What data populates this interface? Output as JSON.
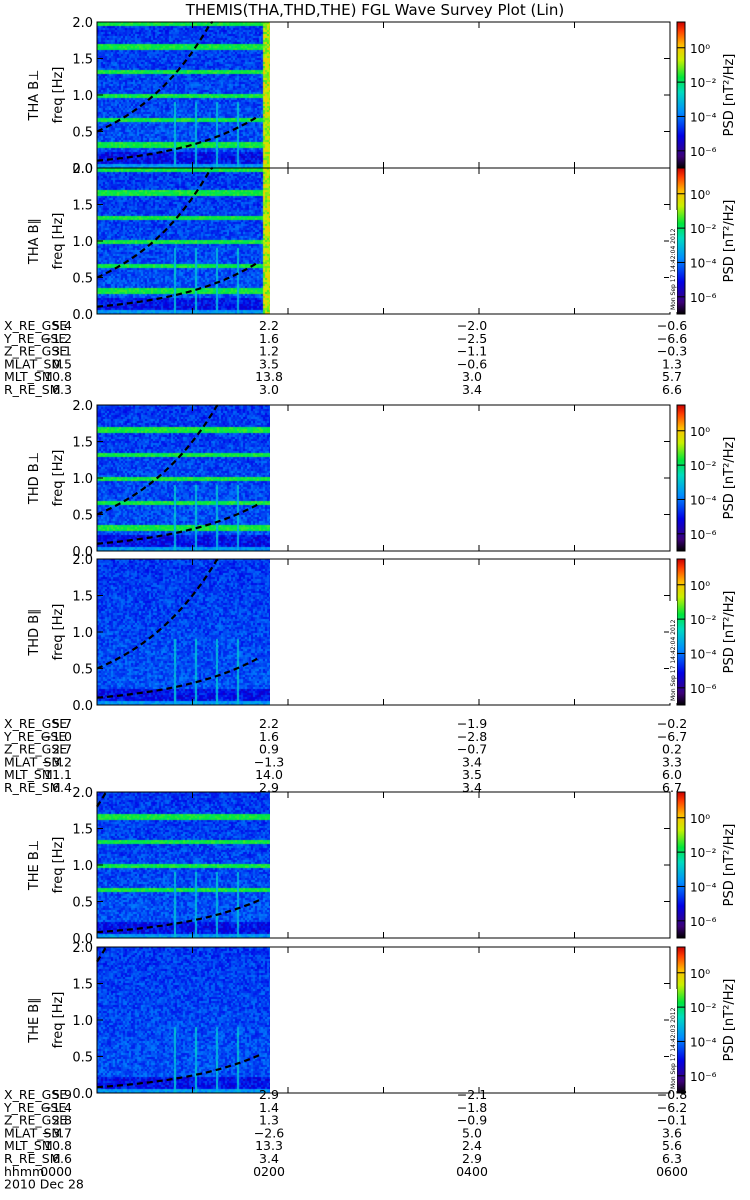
{
  "title": "THEMIS(THA,THD,THE) FGL Wave Survey Plot (Lin)",
  "colorbar": {
    "label": "PSD [nT²/Hz]",
    "ticks": [
      "10⁰",
      "10⁻²",
      "10⁻⁴",
      "10⁻⁶"
    ],
    "tick_exponents": [
      0,
      -2,
      -4,
      -6
    ],
    "range_exp": [
      -7,
      1.5
    ]
  },
  "chart_data": [
    {
      "type": "heatmap",
      "probe": "THA",
      "component": "perp",
      "ylabel_probe": "THA B⊥",
      "ylabel_axis": "freq [Hz]",
      "ylim": [
        0,
        2.0
      ],
      "yticks": [
        "0.0",
        "0.5",
        "1.0",
        "1.5",
        "2.0"
      ],
      "xlim_hours": [
        0,
        6
      ],
      "data_end_hours": 1.7,
      "fce_lines_coeff": [
        0.5,
        0.1
      ],
      "growth": 1.16,
      "lines": "black dashed",
      "harmonic_bands_hz": [
        0.33,
        0.67,
        1.0,
        1.33,
        1.67,
        2.0
      ],
      "edge_burst": true
    },
    {
      "type": "heatmap",
      "probe": "THA",
      "component": "par",
      "ylabel_probe": "THA B∥",
      "ylabel_axis": "freq [Hz]",
      "ylim": [
        0,
        2.0
      ],
      "yticks": [
        "0.0",
        "0.5",
        "1.0",
        "1.5",
        "2.0"
      ],
      "xlim_hours": [
        0,
        6
      ],
      "data_end_hours": 1.7,
      "fce_lines_coeff": [
        0.5,
        0.1
      ],
      "growth": 1.16,
      "lines": "black dashed",
      "harmonic_bands_hz": [
        0.33,
        0.67,
        1.0,
        1.33,
        1.67,
        2.0
      ],
      "edge_burst": true,
      "stamp": "Mon Sep 17 14:42:04 2012"
    },
    {
      "type": "heatmap",
      "probe": "THD",
      "component": "perp",
      "ylabel_probe": "THD B⊥",
      "ylabel_axis": "freq [Hz]",
      "ylim": [
        0,
        2.0
      ],
      "yticks": [
        "0.0",
        "0.5",
        "1.0",
        "1.5",
        "2.0"
      ],
      "xlim_hours": [
        0,
        6
      ],
      "data_end_hours": 1.7,
      "fce_lines_coeff": [
        0.5,
        0.1
      ],
      "growth": 1.1,
      "lines": "black dashed",
      "harmonic_bands_hz": [
        0.33,
        0.67,
        1.0,
        1.33,
        1.67
      ],
      "edge_burst": false
    },
    {
      "type": "heatmap",
      "probe": "THD",
      "component": "par",
      "ylabel_probe": "THD B∥",
      "ylabel_axis": "freq [Hz]",
      "ylim": [
        0,
        2.0
      ],
      "yticks": [
        "0.0",
        "0.5",
        "1.0",
        "1.5",
        "2.0"
      ],
      "xlim_hours": [
        0,
        6
      ],
      "data_end_hours": 1.7,
      "fce_lines_coeff": [
        0.5,
        0.1
      ],
      "growth": 1.1,
      "lines": "black dashed",
      "harmonic_bands_hz": [],
      "edge_burst": false,
      "stamp": "Mon Sep 17 14:42:04 2012"
    },
    {
      "type": "heatmap",
      "probe": "THE",
      "component": "perp",
      "ylabel_probe": "THE B⊥",
      "ylabel_axis": "freq [Hz]",
      "ylim": [
        0,
        2.0
      ],
      "yticks": [
        "0.0",
        "0.5",
        "1.0",
        "1.5",
        "2.0"
      ],
      "xlim_hours": [
        0,
        6
      ],
      "data_end_hours": 1.7,
      "fce_lines_coeff": [
        1.8,
        0.08
      ],
      "growth": 1.1,
      "lines": "black dashed",
      "harmonic_bands_hz": [
        0.67,
        1.0,
        1.33,
        1.67
      ],
      "edge_burst": false
    },
    {
      "type": "heatmap",
      "probe": "THE",
      "component": "par",
      "ylabel_probe": "THE B∥",
      "ylabel_axis": "freq [Hz]",
      "ylim": [
        0,
        2.0
      ],
      "yticks": [
        "0.0",
        "0.5",
        "1.0",
        "1.5",
        "2.0"
      ],
      "xlim_hours": [
        0,
        6
      ],
      "data_end_hours": 1.7,
      "fce_lines_coeff": [
        1.8,
        0.08
      ],
      "growth": 1.1,
      "lines": "black dashed",
      "harmonic_bands_hz": [],
      "edge_burst": false,
      "stamp": "Mon Sep 17 14:42:03 2012"
    }
  ],
  "ephemeris": [
    {
      "probe": "THA",
      "rows": [
        {
          "label": "X_RE_GSE",
          "values": [
            "5.4",
            "2.2",
            "−2.0",
            "−0.6"
          ]
        },
        {
          "label": "Y_RE_GSE",
          "values": [
            "−1.2",
            "1.6",
            "−2.5",
            "−6.6"
          ]
        },
        {
          "label": "Z_RE_GSE",
          "values": [
            "3.1",
            "1.2",
            "−1.1",
            "−0.3"
          ]
        },
        {
          "label": "MLAT_SM",
          "values": [
            "0.5",
            "3.5",
            "−0.6",
            "1.3"
          ]
        },
        {
          "label": "MLT_SM",
          "values": [
            "10.8",
            "13.8",
            "3.0",
            "5.7"
          ]
        },
        {
          "label": "R_RE_SM",
          "values": [
            "6.3",
            "3.0",
            "3.4",
            "6.6"
          ]
        }
      ]
    },
    {
      "probe": "THD",
      "rows": [
        {
          "label": "X_RE_GSE",
          "values": [
            "5.7",
            "2.2",
            "−1.9",
            "−0.2"
          ]
        },
        {
          "label": "Y_RE_GSE",
          "values": [
            "−1.0",
            "1.6",
            "−2.8",
            "−6.7"
          ]
        },
        {
          "label": "Z_RE_GSE",
          "values": [
            "2.7",
            "0.9",
            "−0.7",
            "0.2"
          ]
        },
        {
          "label": "MLAT_SM",
          "values": [
            "−3.2",
            "−1.3",
            "3.4",
            "3.3"
          ]
        },
        {
          "label": "MLT_SM",
          "values": [
            "11.1",
            "14.0",
            "3.5",
            "6.0"
          ]
        },
        {
          "label": "R_RE_SM",
          "values": [
            "6.4",
            "2.9",
            "3.4",
            "6.7"
          ]
        }
      ]
    },
    {
      "probe": "THE",
      "rows": [
        {
          "label": "X_RE_GSE",
          "values": [
            "5.9",
            "2.9",
            "−2.1",
            "−0.8"
          ]
        },
        {
          "label": "Y_RE_GSE",
          "values": [
            "−1.4",
            "1.4",
            "−1.8",
            "−6.2"
          ]
        },
        {
          "label": "Z_RE_GSE",
          "values": [
            "2.8",
            "1.3",
            "−0.9",
            "−0.1"
          ]
        },
        {
          "label": "MLAT_SM",
          "values": [
            "−3.7",
            "−2.6",
            "5.0",
            "3.6"
          ]
        },
        {
          "label": "MLT_SM",
          "values": [
            "10.8",
            "13.3",
            "2.4",
            "5.6"
          ]
        },
        {
          "label": "R_RE_SM",
          "values": [
            "6.6",
            "3.4",
            "2.9",
            "6.3"
          ]
        },
        {
          "label": "hhmm",
          "values": [
            "0000",
            "0200",
            "0400",
            "0600"
          ]
        }
      ],
      "date": "2010 Dec 28"
    }
  ]
}
